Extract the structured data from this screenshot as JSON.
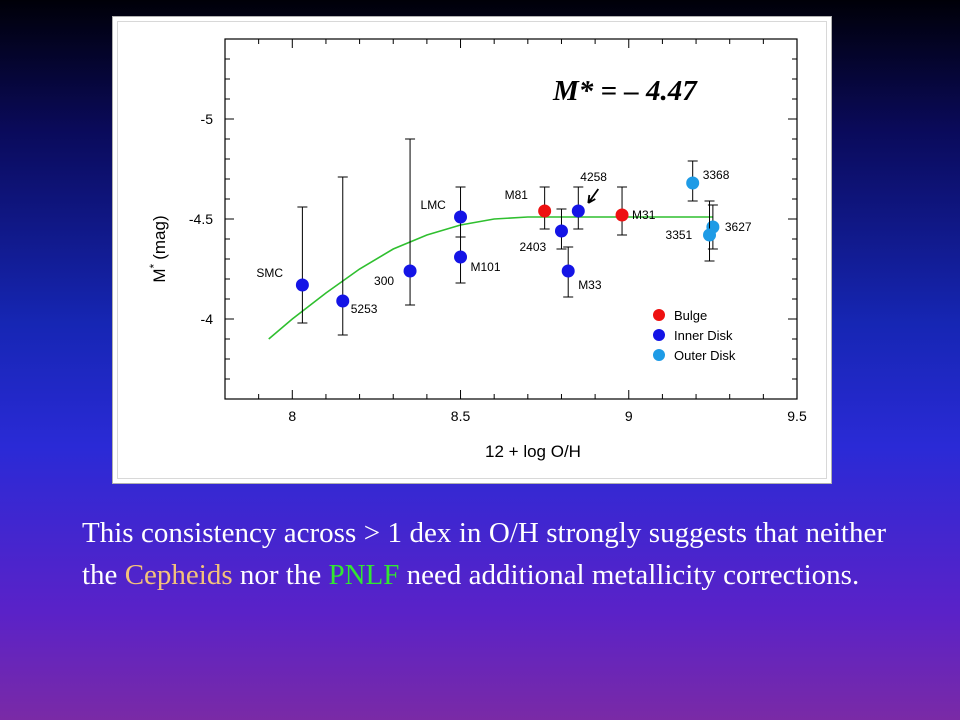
{
  "chart_data": {
    "type": "scatter",
    "xlabel": "12 + log O/H",
    "ylabel": "M* (mag)",
    "ylabel_main": "M",
    "ylabel_sup": "*",
    "ylabel_unit": "(mag)",
    "xlim": [
      7.8,
      9.5
    ],
    "ylim": [
      -3.6,
      -5.4
    ],
    "y_inverted": true,
    "x_ticks": [
      8,
      8.5,
      9,
      9.5
    ],
    "x_tick_labels": [
      "8",
      "8.5",
      "9",
      "9.5"
    ],
    "y_ticks": [
      -5,
      -4.5,
      -4
    ],
    "y_tick_labels": [
      "-5",
      "-4.5",
      "-4"
    ],
    "annotation": "M* = – 4.47",
    "grid": false,
    "legend_position": "bottom-right",
    "legend": [
      {
        "name": "Bulge",
        "color": "#ee1111"
      },
      {
        "name": "Inner Disk",
        "color": "#1414e6"
      },
      {
        "name": "Outer Disk",
        "color": "#1e9be6"
      }
    ],
    "points": [
      {
        "label": "SMC",
        "x": 8.03,
        "y": -4.17,
        "err_lo": -3.98,
        "err_hi": -4.56,
        "group": "Inner Disk"
      },
      {
        "label": "5253",
        "x": 8.15,
        "y": -4.09,
        "err_lo": -3.92,
        "err_hi": -4.71,
        "group": "Inner Disk"
      },
      {
        "label": "300",
        "x": 8.35,
        "y": -4.24,
        "err_lo": -4.07,
        "err_hi": -4.9,
        "group": "Inner Disk"
      },
      {
        "label": "LMC",
        "x": 8.5,
        "y": -4.51,
        "err_lo": -4.41,
        "err_hi": -4.66,
        "group": "Inner Disk"
      },
      {
        "label": "M101",
        "x": 8.5,
        "y": -4.31,
        "err_lo": -4.18,
        "err_hi": -4.41,
        "group": "Inner Disk"
      },
      {
        "label": "M81",
        "x": 8.75,
        "y": -4.54,
        "err_lo": -4.45,
        "err_hi": -4.66,
        "group": "Bulge"
      },
      {
        "label": "2403",
        "x": 8.8,
        "y": -4.44,
        "err_lo": -4.35,
        "err_hi": -4.55,
        "group": "Inner Disk"
      },
      {
        "label": "M33",
        "x": 8.82,
        "y": -4.24,
        "err_lo": -4.11,
        "err_hi": -4.36,
        "group": "Inner Disk"
      },
      {
        "label": "4258",
        "x": 8.85,
        "y": -4.54,
        "err_lo": -4.45,
        "err_hi": -4.66,
        "group": "Inner Disk"
      },
      {
        "label": "M31",
        "x": 8.98,
        "y": -4.52,
        "err_lo": -4.42,
        "err_hi": -4.66,
        "group": "Bulge"
      },
      {
        "label": "3368",
        "x": 9.19,
        "y": -4.68,
        "err_lo": -4.59,
        "err_hi": -4.79,
        "group": "Outer Disk"
      },
      {
        "label": "3627",
        "x": 9.25,
        "y": -4.46,
        "err_lo": -4.35,
        "err_hi": -4.57,
        "group": "Outer Disk"
      },
      {
        "label": "3351",
        "x": 9.24,
        "y": -4.42,
        "err_lo": -4.29,
        "err_hi": -4.59,
        "group": "Outer Disk"
      }
    ],
    "fit_curve": {
      "color": "#2fbf2f",
      "x": [
        7.93,
        8.0,
        8.1,
        8.2,
        8.3,
        8.4,
        8.5,
        8.6,
        8.7,
        8.8,
        8.9,
        9.0,
        9.1,
        9.2,
        9.25
      ],
      "y": [
        -3.9,
        -4.0,
        -4.13,
        -4.25,
        -4.35,
        -4.42,
        -4.47,
        -4.5,
        -4.51,
        -4.51,
        -4.51,
        -4.51,
        -4.51,
        -4.51,
        -4.51
      ]
    }
  },
  "caption": {
    "part1": "This consistency across > 1 dex in O/H strongly suggests that neither the ",
    "cepheids": "Cepheids",
    "part2": " nor the ",
    "pnlf": "PNLF",
    "part3": " need additional metallicity corrections."
  }
}
